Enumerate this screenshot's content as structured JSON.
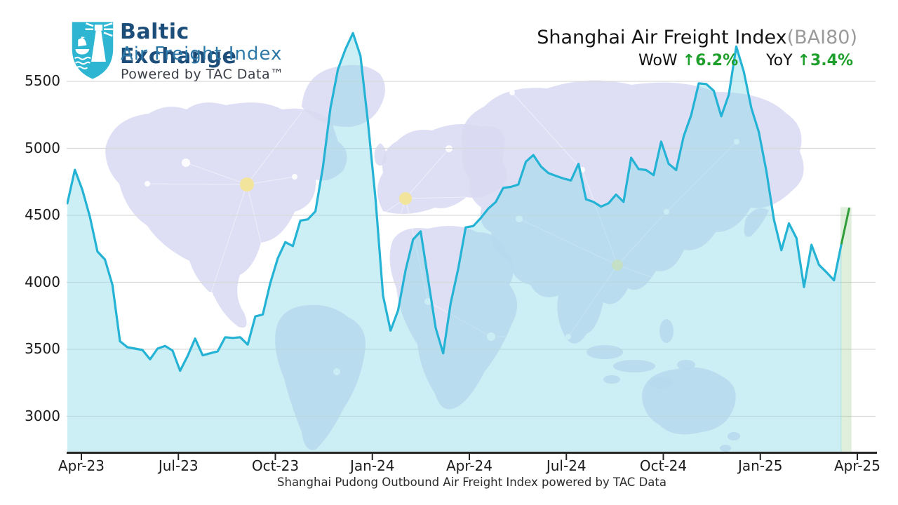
{
  "logo": {
    "title": "Baltic Exchange",
    "subtitle": "Air Freight Index",
    "powered": "Powered by TAC Data™"
  },
  "header": {
    "title": "Shanghai Air Freight Index",
    "title_suffix": "(BAI80)",
    "wow_label": "WoW",
    "wow_value": "↑6.2%",
    "yoy_label": "YoY",
    "yoy_value": "↑3.4%"
  },
  "caption": "Shanghai Pudong Outbound Air Freight Index powered by TAC Data",
  "colors": {
    "line": "#24b3d5",
    "area_fill": "#8fd9e8",
    "last_segment_line": "#2f9e38",
    "last_segment_band": "#9fce90",
    "up_green": "#1e9e2a",
    "grid": "#d9d9d9",
    "axis": "#262626",
    "map": "#d9dbf2",
    "map_dot_yellow": "#f2e59b",
    "title_gray": "#9b9b9b"
  },
  "chart_data": {
    "type": "area",
    "title": "Shanghai Air Freight Index (BAI80)",
    "frequency": "weekly",
    "x_range_labels": [
      "Apr-23",
      "Apr-25"
    ],
    "x_tick_labels": [
      "Apr-23",
      "Jul-23",
      "Oct-23",
      "Jan-24",
      "Apr-24",
      "Jul-24",
      "Oct-24",
      "Jan-25",
      "Apr-25"
    ],
    "y_ticks": [
      3000,
      3500,
      4000,
      4500,
      5000,
      5500
    ],
    "ylim": [
      2730,
      6060
    ],
    "grid": "horizontal-only",
    "legend": "none",
    "annotations": {
      "wow_change_pct": 6.2,
      "yoy_change_pct": 3.4,
      "latest_value": 4550,
      "previous_value": 4290,
      "max_value": 5860,
      "min_value": 3340
    },
    "last_segment": {
      "points": 2,
      "style": "green-line-with-pale-band",
      "meaning": "latest week-over-week move"
    },
    "series": [
      {
        "name": "BAI80 weekly index",
        "values": [
          4590,
          4840,
          4690,
          4490,
          4230,
          4170,
          3980,
          3560,
          3515,
          3505,
          3495,
          3425,
          3505,
          3525,
          3490,
          3340,
          3450,
          3580,
          3455,
          3470,
          3485,
          3590,
          3585,
          3590,
          3535,
          3745,
          3760,
          3995,
          4180,
          4300,
          4270,
          4460,
          4470,
          4530,
          4860,
          5300,
          5590,
          5740,
          5860,
          5690,
          5190,
          4620,
          3900,
          3640,
          3790,
          4090,
          4320,
          4380,
          4020,
          3660,
          3470,
          3845,
          4100,
          4410,
          4420,
          4480,
          4550,
          4600,
          4705,
          4712,
          4730,
          4900,
          4950,
          4865,
          4815,
          4795,
          4775,
          4760,
          4885,
          4620,
          4600,
          4565,
          4590,
          4655,
          4600,
          4930,
          4845,
          4838,
          4800,
          5050,
          4885,
          4838,
          5090,
          5250,
          5485,
          5480,
          5430,
          5240,
          5400,
          5760,
          5570,
          5300,
          5120,
          4830,
          4470,
          4240,
          4440,
          4330,
          3965,
          4280,
          4130,
          4075,
          4015,
          4290,
          4550
        ]
      }
    ]
  }
}
